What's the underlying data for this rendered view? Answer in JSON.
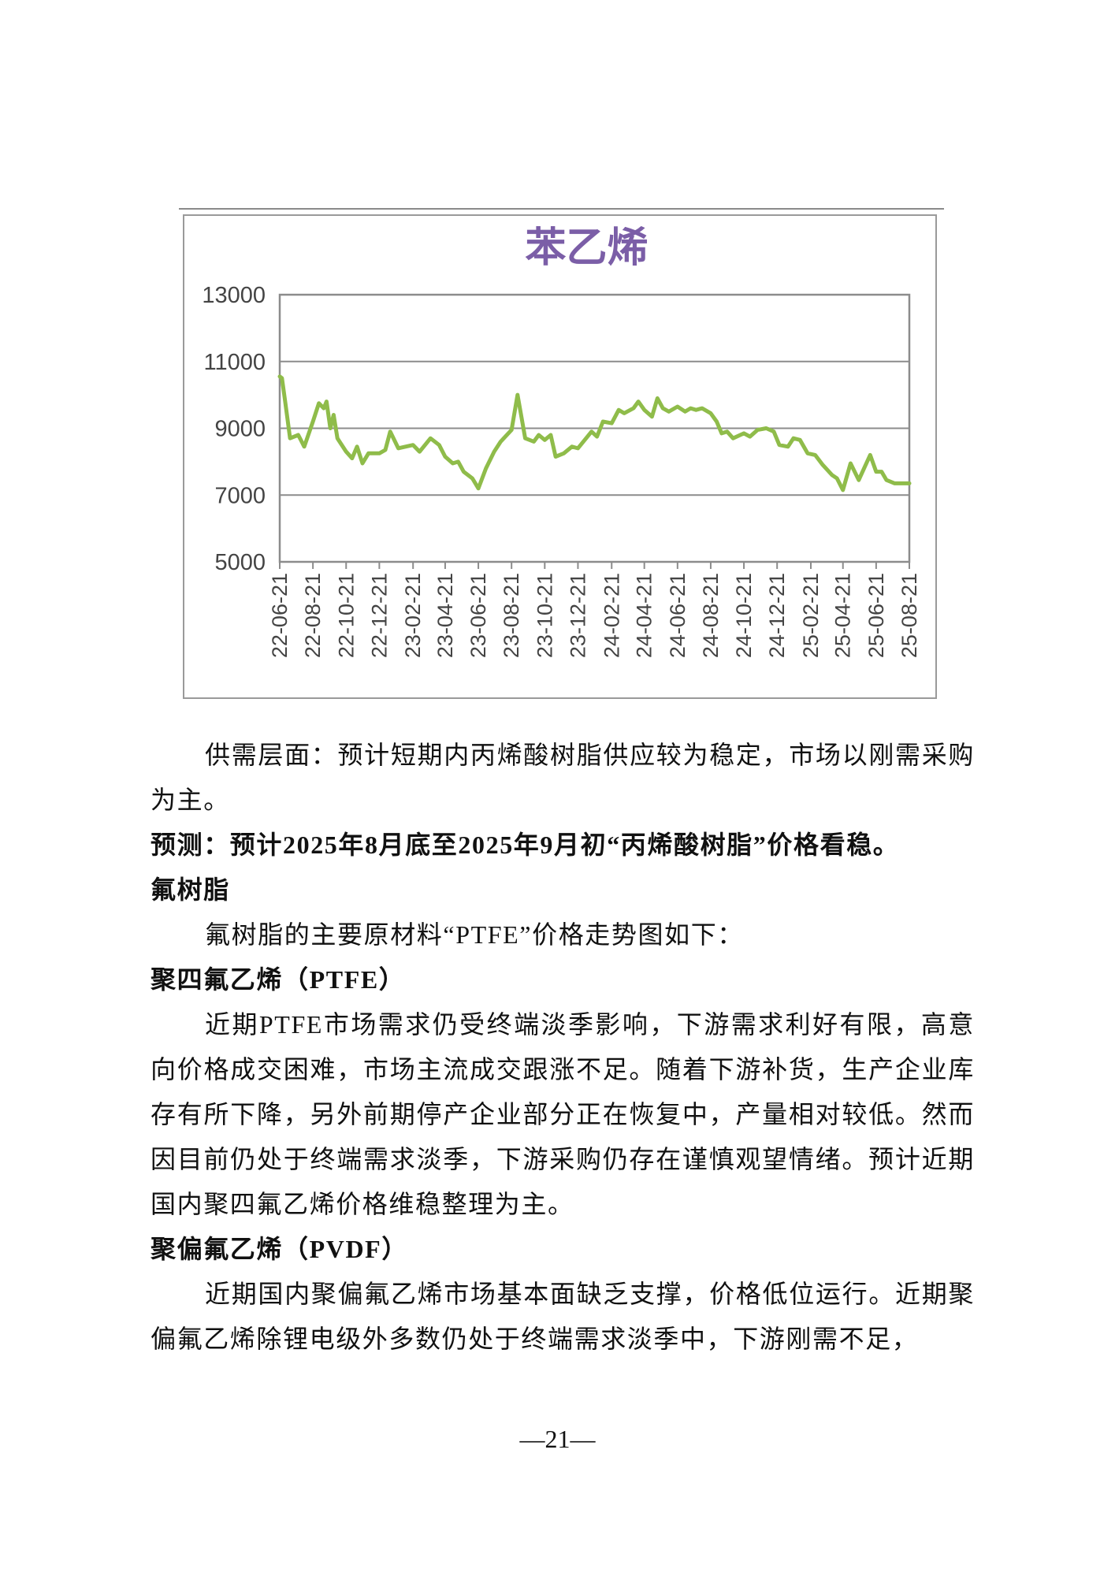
{
  "chart_data": {
    "type": "line",
    "title": "苯乙烯",
    "title_color": "#7b5ea7",
    "line_color": "#8fbc4a",
    "xlabel": "",
    "ylabel": "",
    "ylim": [
      5000,
      13000
    ],
    "yticks": [
      5000,
      7000,
      9000,
      11000,
      13000
    ],
    "ytick_labels": [
      "5000",
      "7000",
      "9000",
      "11000",
      "13000"
    ],
    "xtick_dates": [
      "2022-06-21",
      "2022-08-21",
      "2022-10-21",
      "2022-12-21",
      "2023-02-21",
      "2023-04-21",
      "2023-06-21",
      "2023-08-21",
      "2023-10-21",
      "2023-12-21",
      "2024-02-21",
      "2024-04-21",
      "2024-06-21",
      "2024-08-21",
      "2024-10-21",
      "2024-12-21",
      "2025-02-21",
      "2025-04-21",
      "2025-06-21",
      "2025-08-21"
    ],
    "xtick_labels": [
      "22-06-21",
      "22-08-21",
      "22-10-21",
      "22-12-21",
      "23-02-21",
      "23-04-21",
      "23-06-21",
      "23-08-21",
      "23-10-21",
      "23-12-21",
      "24-02-21",
      "24-04-21",
      "24-06-21",
      "24-08-21",
      "24-10-21",
      "24-12-21",
      "25-02-21",
      "25-04-21",
      "25-06-21",
      "25-08-21"
    ],
    "xlim": [
      "2022-06-21",
      "2025-08-21"
    ],
    "grid": true,
    "series": [
      {
        "x": [
          "2022-06-21",
          "2022-06-25",
          "2022-07-01",
          "2022-07-10",
          "2022-07-25",
          "2022-08-05",
          "2022-08-21",
          "2022-09-01",
          "2022-09-10",
          "2022-09-15",
          "2022-09-22",
          "2022-09-28",
          "2022-10-05",
          "2022-10-21",
          "2022-11-01",
          "2022-11-10",
          "2022-11-20",
          "2022-12-01",
          "2022-12-21",
          "2023-01-01",
          "2023-01-10",
          "2023-01-25",
          "2023-02-21",
          "2023-03-05",
          "2023-03-25",
          "2023-04-10",
          "2023-04-21",
          "2023-05-05",
          "2023-05-15",
          "2023-05-25",
          "2023-06-10",
          "2023-06-21",
          "2023-07-05",
          "2023-07-20",
          "2023-08-01",
          "2023-08-21",
          "2023-09-01",
          "2023-09-15",
          "2023-10-01",
          "2023-10-10",
          "2023-10-21",
          "2023-11-01",
          "2023-11-10",
          "2023-11-25",
          "2023-12-10",
          "2023-12-21",
          "2024-01-05",
          "2024-01-15",
          "2024-01-25",
          "2024-02-05",
          "2024-02-21",
          "2024-03-05",
          "2024-03-15",
          "2024-04-01",
          "2024-04-10",
          "2024-04-21",
          "2024-05-05",
          "2024-05-15",
          "2024-05-25",
          "2024-06-05",
          "2024-06-21",
          "2024-07-05",
          "2024-07-15",
          "2024-07-25",
          "2024-08-05",
          "2024-08-21",
          "2024-09-01",
          "2024-09-10",
          "2024-09-20",
          "2024-10-01",
          "2024-10-21",
          "2024-11-01",
          "2024-11-15",
          "2024-12-01",
          "2024-12-15",
          "2024-12-25",
          "2025-01-10",
          "2025-01-20",
          "2025-02-01",
          "2025-02-15",
          "2025-03-01",
          "2025-03-15",
          "2025-04-01",
          "2025-04-10",
          "2025-04-21",
          "2025-05-05",
          "2025-05-20",
          "2025-06-10",
          "2025-06-21",
          "2025-07-01",
          "2025-07-10",
          "2025-07-25",
          "2025-08-10",
          "2025-08-21"
        ],
        "y": [
          10550,
          10500,
          9800,
          8700,
          8800,
          8450,
          9200,
          9750,
          9600,
          9800,
          9000,
          9400,
          8700,
          8300,
          8100,
          8450,
          7950,
          8250,
          8250,
          8350,
          8900,
          8400,
          8500,
          8300,
          8700,
          8500,
          8150,
          7950,
          8000,
          7700,
          7500,
          7200,
          7800,
          8300,
          8600,
          8950,
          10000,
          8700,
          8600,
          8800,
          8650,
          8800,
          8150,
          8250,
          8450,
          8400,
          8700,
          8900,
          8750,
          9200,
          9150,
          9550,
          9450,
          9600,
          9800,
          9550,
          9350,
          9900,
          9600,
          9500,
          9650,
          9500,
          9600,
          9550,
          9600,
          9450,
          9200,
          8850,
          8900,
          8700,
          8850,
          8750,
          8950,
          9000,
          8900,
          8500,
          8450,
          8700,
          8650,
          8250,
          8200,
          7900,
          7600,
          7500,
          7150,
          7950,
          7450,
          8200,
          7700,
          7700,
          7450,
          7350,
          7350,
          7350
        ]
      }
    ]
  },
  "body": {
    "paragraphs": [
      {
        "style": "indent",
        "text": "供需层面：预计短期内丙烯酸树脂供应较为稳定，市场以刚需采购为主。"
      },
      {
        "style": "bold",
        "text": "预测：预计2025年8月底至2025年9月初“丙烯酸树脂”价格看稳。"
      },
      {
        "style": "bold",
        "text": "氟树脂"
      },
      {
        "style": "indent",
        "text": "氟树脂的主要原材料“PTFE”价格走势图如下："
      },
      {
        "style": "bold",
        "text": "聚四氟乙烯（PTFE）"
      },
      {
        "style": "indent",
        "text": "近期PTFE市场需求仍受终端淡季影响，下游需求利好有限，高意向价格成交困难，市场主流成交跟涨不足。随着下游补货，生产企业库存有所下降，另外前期停产企业部分正在恢复中，产量相对较低。然而因目前仍处于终端需求淡季，下游采购仍存在谨慎观望情绪。预计近期国内聚四氟乙烯价格维稳整理为主。"
      },
      {
        "style": "bold",
        "text": "聚偏氟乙烯（PVDF）"
      },
      {
        "style": "indent",
        "text": "近期国内聚偏氟乙烯市场基本面缺乏支撑，价格低位运行。近期聚偏氟乙烯除锂电级外多数仍处于终端需求淡季中，下游刚需不足，"
      }
    ]
  },
  "footer": {
    "page_number": "—21—"
  }
}
